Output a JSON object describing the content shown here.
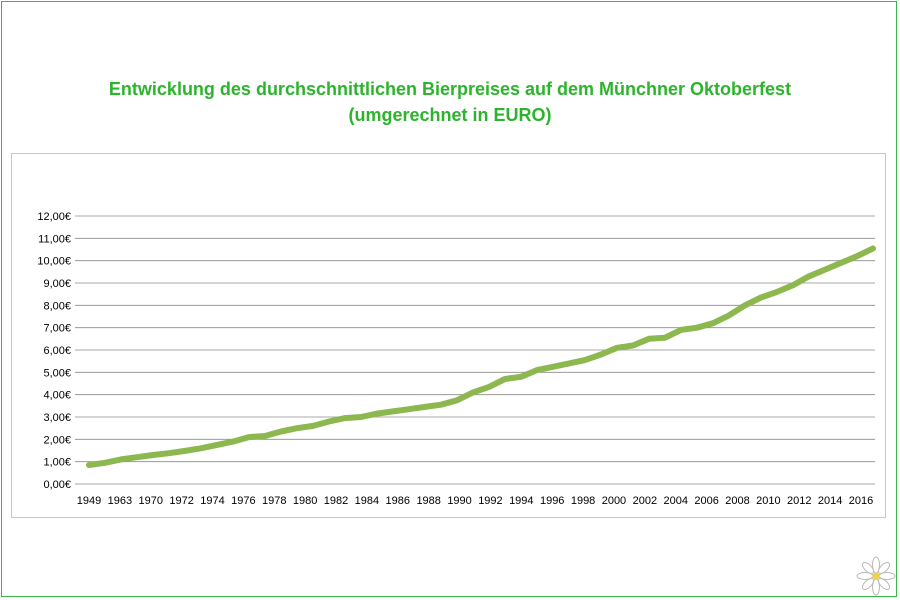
{
  "chart_data": {
    "type": "line",
    "title": "Entwicklung des durchschnittlichen Bierpreises auf dem Münchner Oktoberfest",
    "subtitle": "(umgerechnet in EURO)",
    "xlabel": "",
    "ylabel": "",
    "ylim": [
      0,
      12
    ],
    "yticks": [
      "0,00€",
      "1,00€",
      "2,00€",
      "3,00€",
      "4,00€",
      "5,00€",
      "6,00€",
      "7,00€",
      "8,00€",
      "9,00€",
      "10,00€",
      "11,00€",
      "12,00€"
    ],
    "xticks": [
      "1949",
      "1963",
      "1970",
      "1972",
      "1974",
      "1976",
      "1978",
      "1980",
      "1982",
      "1984",
      "1986",
      "1988",
      "1990",
      "1992",
      "1994",
      "1996",
      "1998",
      "2000",
      "2002",
      "2004",
      "2006",
      "2008",
      "2010",
      "2012",
      "2014",
      "2016"
    ],
    "grid": true,
    "legend": "none",
    "line_color": "#8db84f",
    "values": [
      0.85,
      0.95,
      1.1,
      1.2,
      1.3,
      1.38,
      1.48,
      1.6,
      1.75,
      1.9,
      2.1,
      2.15,
      2.35,
      2.5,
      2.6,
      2.8,
      2.95,
      3.0,
      3.15,
      3.25,
      3.35,
      3.45,
      3.55,
      3.75,
      4.1,
      4.35,
      4.7,
      4.8,
      5.1,
      5.25,
      5.4,
      5.55,
      5.8,
      6.1,
      6.2,
      6.5,
      6.55,
      6.9,
      7.0,
      7.2,
      7.55,
      8.0,
      8.35,
      8.6,
      8.9,
      9.3,
      9.6,
      9.9,
      10.2,
      10.55
    ]
  }
}
